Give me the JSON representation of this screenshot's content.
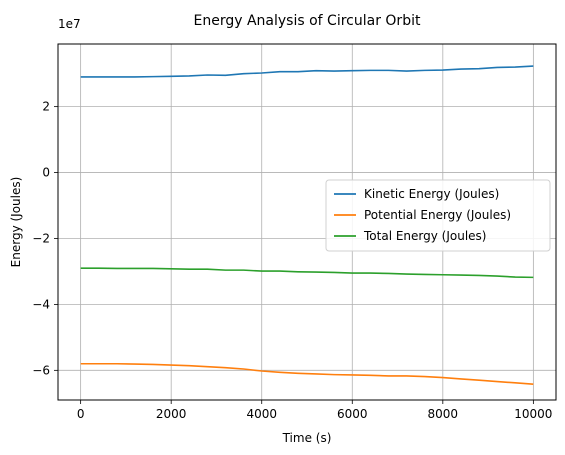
{
  "chart_data": {
    "type": "line",
    "title": "Energy Analysis of Circular Orbit",
    "xlabel": "Time (s)",
    "ylabel": "Energy (Joules)",
    "y_scale_label": "1e7",
    "xlim": [
      -500,
      10500
    ],
    "ylim": [
      -6.9,
      3.9
    ],
    "x_ticks": [
      0,
      2000,
      4000,
      6000,
      8000,
      10000
    ],
    "x_tick_labels": [
      "0",
      "2000",
      "4000",
      "6000",
      "8000",
      "10000"
    ],
    "y_ticks": [
      -6,
      -4,
      -2,
      0,
      2
    ],
    "y_tick_labels": [
      "−6",
      "−4",
      "−2",
      "0",
      "2"
    ],
    "grid": true,
    "legend_position": "center-right",
    "x": [
      0,
      400,
      800,
      1200,
      1600,
      2000,
      2400,
      2800,
      3200,
      3600,
      4000,
      4400,
      4800,
      5200,
      5600,
      6000,
      6400,
      6800,
      7200,
      7600,
      8000,
      8400,
      8800,
      9200,
      9600,
      10000
    ],
    "series": [
      {
        "name": "Kinetic Energy (Joules)",
        "color": "#1f77b4",
        "values": [
          2.9,
          2.9,
          2.9,
          2.9,
          2.91,
          2.92,
          2.93,
          2.96,
          2.95,
          3.0,
          3.02,
          3.06,
          3.06,
          3.09,
          3.08,
          3.09,
          3.1,
          3.1,
          3.08,
          3.1,
          3.11,
          3.14,
          3.15,
          3.19,
          3.2,
          3.23
        ]
      },
      {
        "name": "Potential Energy (Joules)",
        "color": "#ff7f0e",
        "values": [
          -5.8,
          -5.8,
          -5.8,
          -5.81,
          -5.82,
          -5.84,
          -5.86,
          -5.89,
          -5.92,
          -5.96,
          -6.02,
          -6.06,
          -6.09,
          -6.11,
          -6.13,
          -6.14,
          -6.15,
          -6.17,
          -6.17,
          -6.19,
          -6.22,
          -6.26,
          -6.3,
          -6.34,
          -6.38,
          -6.42
        ]
      },
      {
        "name": "Total Energy (Joules)",
        "color": "#2ca02c",
        "values": [
          -2.9,
          -2.9,
          -2.91,
          -2.91,
          -2.91,
          -2.92,
          -2.93,
          -2.93,
          -2.96,
          -2.96,
          -2.99,
          -2.99,
          -3.01,
          -3.02,
          -3.03,
          -3.05,
          -3.05,
          -3.06,
          -3.08,
          -3.09,
          -3.1,
          -3.11,
          -3.12,
          -3.14,
          -3.17,
          -3.18
        ]
      }
    ]
  }
}
